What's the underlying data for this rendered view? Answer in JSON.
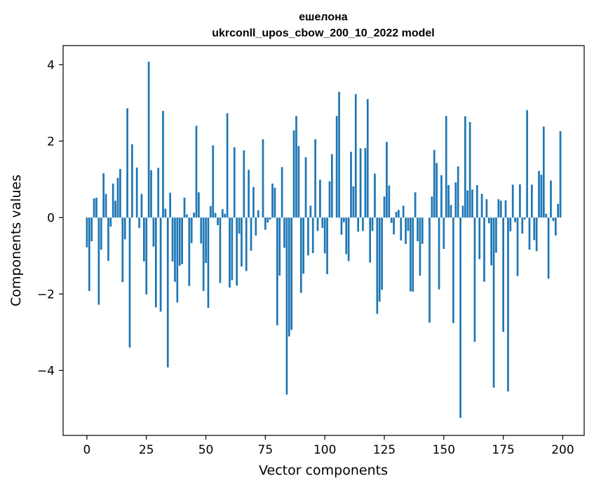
{
  "chart_data": {
    "type": "bar",
    "title": "ешелона",
    "subtitle": "ukrconll_upos_cbow_200_10_2022 model",
    "xlabel": "Vector components",
    "ylabel": "Components values",
    "xlim": [
      -10,
      209
    ],
    "ylim": [
      -5.7,
      4.5
    ],
    "xticks": [
      0,
      25,
      50,
      75,
      100,
      125,
      150,
      175,
      200
    ],
    "yticks": [
      -4,
      -2,
      0,
      2,
      4
    ],
    "grid": false,
    "bar_color": "#1f77b4",
    "series": [
      {
        "values": [
          -0.78,
          -1.92,
          -0.62,
          0.5,
          0.52,
          -2.28,
          -0.84,
          1.16,
          0.62,
          -1.13,
          -0.24,
          0.89,
          0.44,
          1.04,
          1.27,
          -1.69,
          -0.57,
          2.86,
          -3.4,
          1.92,
          0.0,
          1.31,
          -0.27,
          0.62,
          -1.15,
          -2.01,
          4.08,
          1.24,
          -0.76,
          -2.35,
          1.3,
          -2.46,
          2.79,
          0.23,
          -3.92,
          0.65,
          -1.15,
          -1.68,
          -2.22,
          -1.26,
          -1.22,
          0.52,
          0.08,
          -1.79,
          -0.67,
          0.13,
          2.4,
          0.66,
          -0.68,
          -1.92,
          -1.19,
          -2.36,
          0.3,
          1.89,
          0.12,
          -0.2,
          -1.71,
          0.22,
          0.1,
          2.73,
          -1.83,
          -1.64,
          1.84,
          -1.78,
          -0.42,
          -1.28,
          1.76,
          -1.4,
          1.25,
          -0.87,
          0.8,
          -0.47,
          0.19,
          0.0,
          2.05,
          -0.32,
          -0.13,
          -0.05,
          0.89,
          0.78,
          -2.82,
          -1.52,
          1.32,
          -0.79,
          -4.63,
          -3.11,
          -2.94,
          2.28,
          2.66,
          1.87,
          -1.97,
          -1.47,
          1.58,
          -0.99,
          0.31,
          -0.93,
          2.05,
          -0.35,
          0.99,
          -0.27,
          -0.94,
          -1.48,
          0.95,
          1.66,
          0.0,
          2.66,
          3.29,
          -0.45,
          -0.12,
          -0.96,
          -1.14,
          1.72,
          0.82,
          3.23,
          -0.37,
          1.81,
          -0.35,
          1.82,
          3.1,
          -1.18,
          -0.35,
          1.15,
          -2.52,
          -2.2,
          -1.89,
          0.55,
          1.98,
          0.84,
          -0.14,
          -0.44,
          0.15,
          0.2,
          -0.6,
          0.31,
          -0.69,
          -0.35,
          -1.93,
          -1.94,
          0.66,
          -0.62,
          -1.52,
          -0.69,
          0.0,
          0.0,
          -2.75,
          0.55,
          1.77,
          1.43,
          -1.88,
          1.11,
          -0.82,
          2.66,
          0.85,
          0.33,
          -2.76,
          0.92,
          1.34,
          -5.24,
          0.31,
          2.65,
          0.71,
          2.5,
          0.73,
          -3.25,
          0.85,
          -1.09,
          0.62,
          -1.68,
          0.48,
          -0.15,
          -1.25,
          -4.45,
          -0.92,
          0.48,
          0.44,
          -2.99,
          0.45,
          -4.55,
          -0.36,
          0.86,
          -0.12,
          -1.53,
          0.87,
          -0.42,
          -0.05,
          2.81,
          -0.84,
          0.86,
          -0.59,
          -0.88,
          1.22,
          1.12,
          2.38,
          0.1,
          -1.6,
          0.97,
          -0.09,
          -0.47,
          0.36,
          2.26
        ]
      }
    ]
  }
}
